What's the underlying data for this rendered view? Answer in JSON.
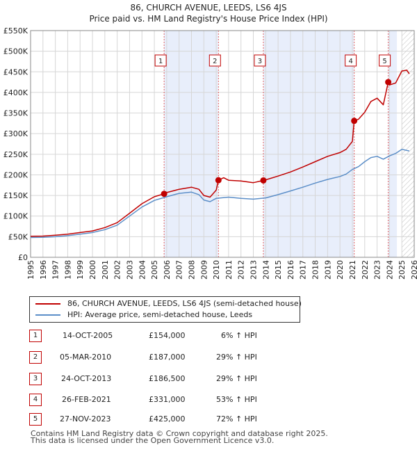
{
  "chart_data": {
    "type": "line",
    "title": "86, CHURCH AVENUE, LEEDS, LS6 4JS",
    "subtitle": "Price paid vs. HM Land Registry's House Price Index (HPI)",
    "x_range": [
      1995,
      2026
    ],
    "y_range": [
      0,
      550000
    ],
    "x_ticks": [
      "1995",
      "1996",
      "1997",
      "1998",
      "1999",
      "2000",
      "2001",
      "2002",
      "2003",
      "2004",
      "2005",
      "2006",
      "2007",
      "2008",
      "2009",
      "2010",
      "2011",
      "2012",
      "2013",
      "2014",
      "2015",
      "2016",
      "2017",
      "2018",
      "2019",
      "2020",
      "2021",
      "2022",
      "2023",
      "2024",
      "2025",
      "2026"
    ],
    "y_ticks": [
      {
        "value": 0,
        "label": "£0"
      },
      {
        "value": 50000,
        "label": "£50K"
      },
      {
        "value": 100000,
        "label": "£100K"
      },
      {
        "value": 150000,
        "label": "£150K"
      },
      {
        "value": 200000,
        "label": "£200K"
      },
      {
        "value": 250000,
        "label": "£250K"
      },
      {
        "value": 300000,
        "label": "£300K"
      },
      {
        "value": 350000,
        "label": "£350K"
      },
      {
        "value": 400000,
        "label": "£400K"
      },
      {
        "value": 450000,
        "label": "£450K"
      },
      {
        "value": 500000,
        "label": "£500K"
      },
      {
        "value": 550000,
        "label": "£550K"
      }
    ],
    "grid": true,
    "shaded_periods": [
      [
        2005.79,
        2010.18
      ],
      [
        2013.81,
        2021.15
      ],
      [
        2023.9,
        2024.6
      ]
    ],
    "hatched_after": 2025.0,
    "series": [
      {
        "name": "86, CHURCH AVENUE, LEEDS, LS6 4JS (semi-detached house)",
        "color": "#c00000",
        "points": [
          [
            1995,
            51000
          ],
          [
            1996,
            51500
          ],
          [
            1997,
            53500
          ],
          [
            1998,
            56000
          ],
          [
            1999,
            60000
          ],
          [
            2000,
            64000
          ],
          [
            2001,
            72000
          ],
          [
            2002,
            84000
          ],
          [
            2003,
            107000
          ],
          [
            2004,
            130000
          ],
          [
            2005,
            147000
          ],
          [
            2005.79,
            154000
          ],
          [
            2006,
            157000
          ],
          [
            2007,
            165000
          ],
          [
            2008,
            170000
          ],
          [
            2008.6,
            165000
          ],
          [
            2009,
            150000
          ],
          [
            2009.5,
            146000
          ],
          [
            2010,
            163000
          ],
          [
            2010.18,
            187000
          ],
          [
            2010.6,
            193000
          ],
          [
            2011,
            187000
          ],
          [
            2012,
            185000
          ],
          [
            2013,
            181000
          ],
          [
            2013.81,
            186500
          ],
          [
            2014,
            188000
          ],
          [
            2015,
            197000
          ],
          [
            2016,
            207000
          ],
          [
            2017,
            219000
          ],
          [
            2018,
            232000
          ],
          [
            2019,
            245000
          ],
          [
            2020,
            254000
          ],
          [
            2020.5,
            262000
          ],
          [
            2021,
            281000
          ],
          [
            2021.15,
            331000
          ],
          [
            2021.5,
            335000
          ],
          [
            2022,
            352000
          ],
          [
            2022.5,
            378000
          ],
          [
            2023,
            386000
          ],
          [
            2023.5,
            370000
          ],
          [
            2023.9,
            425000
          ],
          [
            2024,
            418000
          ],
          [
            2024.5,
            423000
          ],
          [
            2025,
            452000
          ],
          [
            2025.4,
            454000
          ],
          [
            2025.6,
            445000
          ]
        ]
      },
      {
        "name": "HPI: Average price, semi-detached house, Leeds",
        "color": "#5b8ec8",
        "points": [
          [
            1995,
            48000
          ],
          [
            1996,
            48500
          ],
          [
            1997,
            50000
          ],
          [
            1998,
            52500
          ],
          [
            1999,
            56000
          ],
          [
            2000,
            60000
          ],
          [
            2001,
            67000
          ],
          [
            2002,
            78000
          ],
          [
            2003,
            100000
          ],
          [
            2004,
            122000
          ],
          [
            2005,
            138000
          ],
          [
            2006,
            147000
          ],
          [
            2007,
            155000
          ],
          [
            2008,
            158000
          ],
          [
            2008.6,
            152000
          ],
          [
            2009,
            139000
          ],
          [
            2009.5,
            135000
          ],
          [
            2010,
            143000
          ],
          [
            2011,
            146000
          ],
          [
            2012,
            143000
          ],
          [
            2013,
            141000
          ],
          [
            2014,
            144000
          ],
          [
            2015,
            152000
          ],
          [
            2016,
            161000
          ],
          [
            2017,
            170000
          ],
          [
            2018,
            180000
          ],
          [
            2019,
            189000
          ],
          [
            2020,
            196000
          ],
          [
            2020.5,
            202000
          ],
          [
            2021,
            213000
          ],
          [
            2021.5,
            220000
          ],
          [
            2022,
            232000
          ],
          [
            2022.5,
            242000
          ],
          [
            2023,
            245000
          ],
          [
            2023.5,
            238000
          ],
          [
            2024,
            246000
          ],
          [
            2024.5,
            252000
          ],
          [
            2025,
            262000
          ],
          [
            2025.6,
            258000
          ]
        ]
      }
    ],
    "sales": [
      {
        "id": "1",
        "x": 2005.79,
        "price": 154000,
        "date": "14-OCT-2005",
        "price_label": "£154,000",
        "hpi": "6% ↑ HPI"
      },
      {
        "id": "2",
        "x": 2010.18,
        "price": 187000,
        "date": "05-MAR-2010",
        "price_label": "£187,000",
        "hpi": "29% ↑ HPI"
      },
      {
        "id": "3",
        "x": 2013.81,
        "price": 186500,
        "date": "24-OCT-2013",
        "price_label": "£186,500",
        "hpi": "29% ↑ HPI"
      },
      {
        "id": "4",
        "x": 2021.15,
        "price": 331000,
        "date": "26-FEB-2021",
        "price_label": "£331,000",
        "hpi": "53% ↑ HPI"
      },
      {
        "id": "5",
        "x": 2023.9,
        "price": 425000,
        "date": "27-NOV-2023",
        "price_label": "£425,000",
        "hpi": "72% ↑ HPI"
      }
    ]
  },
  "legend": {
    "property_label": "86, CHURCH AVENUE, LEEDS, LS6 4JS (semi-detached house)",
    "hpi_label": "HPI: Average price, semi-detached house, Leeds",
    "property_color": "#c00000",
    "hpi_color": "#5b8ec8"
  },
  "footer": {
    "line1": "Contains HM Land Registry data © Crown copyright and database right 2025.",
    "line2": "This data is licensed under the Open Government Licence v3.0."
  }
}
